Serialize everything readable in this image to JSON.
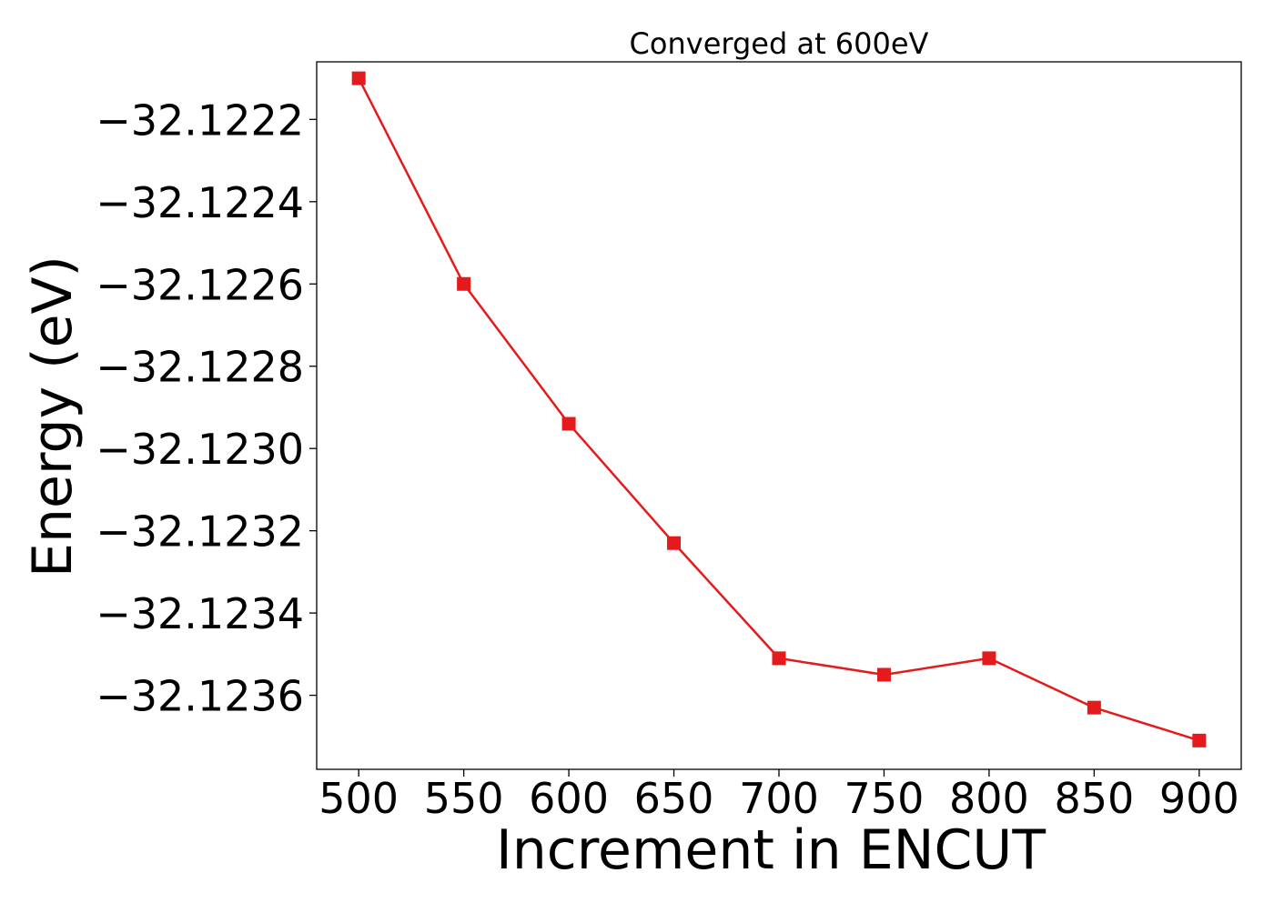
{
  "chart_data": {
    "type": "line",
    "title": "Converged at 600eV",
    "xlabel": "Increment in ENCUT",
    "ylabel": "Energy (eV)",
    "xlim": [
      480,
      920
    ],
    "ylim": [
      -32.12378,
      -32.12206
    ],
    "x_ticks": [
      500,
      550,
      600,
      650,
      700,
      750,
      800,
      850,
      900
    ],
    "y_ticks": [
      -32.1222,
      -32.1224,
      -32.1226,
      -32.1228,
      -32.123,
      -32.1232,
      -32.1234,
      -32.1236
    ],
    "y_tick_labels": [
      "−32.1222",
      "−32.1224",
      "−32.1226",
      "−32.1228",
      "−32.1230",
      "−32.1232",
      "−32.1234",
      "−32.1236"
    ],
    "grid": false,
    "legend": "none",
    "series": [
      {
        "color": "#e41a1c",
        "marker": "square",
        "x": [
          500,
          550,
          600,
          650,
          700,
          750,
          800,
          850,
          900
        ],
        "y": [
          -32.1221,
          -32.1226,
          -32.12294,
          -32.12323,
          -32.12351,
          -32.12355,
          -32.12351,
          -32.12363,
          -32.12371
        ]
      }
    ]
  }
}
